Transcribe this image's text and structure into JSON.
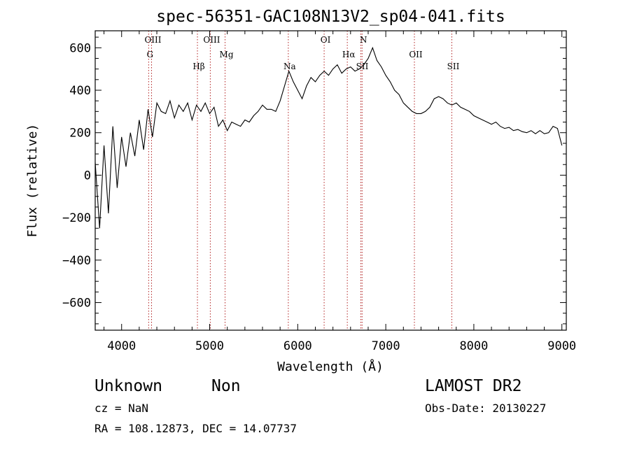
{
  "chart_data": {
    "type": "line",
    "title": "spec-56351-GAC108N13V2_sp04-041.fits",
    "xlabel": "Wavelength (Å)",
    "ylabel": "Flux (relative)",
    "xlim": [
      3700,
      9050
    ],
    "ylim": [
      -730,
      680
    ],
    "xticks": [
      4000,
      5000,
      6000,
      7000,
      8000,
      9000
    ],
    "yticks": [
      -600,
      -400,
      -200,
      0,
      200,
      400,
      600
    ],
    "grid": false,
    "series": [
      {
        "line_color": "#000000",
        "x": [
          3700,
          3750,
          3800,
          3850,
          3900,
          3950,
          4000,
          4050,
          4100,
          4150,
          4200,
          4250,
          4300,
          4350,
          4400,
          4450,
          4500,
          4550,
          4600,
          4650,
          4700,
          4750,
          4800,
          4850,
          4900,
          4950,
          5000,
          5050,
          5100,
          5150,
          5200,
          5250,
          5300,
          5350,
          5400,
          5450,
          5500,
          5550,
          5600,
          5650,
          5700,
          5750,
          5800,
          5850,
          5900,
          5950,
          6000,
          6050,
          6100,
          6150,
          6200,
          6250,
          6300,
          6350,
          6400,
          6450,
          6500,
          6550,
          6600,
          6650,
          6700,
          6750,
          6800,
          6850,
          6900,
          6950,
          7000,
          7050,
          7100,
          7150,
          7200,
          7250,
          7300,
          7350,
          7400,
          7450,
          7500,
          7550,
          7600,
          7650,
          7700,
          7750,
          7800,
          7850,
          7900,
          7950,
          8000,
          8050,
          8100,
          8150,
          8200,
          8250,
          8300,
          8350,
          8400,
          8450,
          8500,
          8550,
          8600,
          8650,
          8700,
          8750,
          8800,
          8850,
          8900,
          8950,
          9000
        ],
        "y": [
          60,
          -250,
          140,
          -180,
          230,
          -60,
          180,
          40,
          200,
          90,
          260,
          120,
          310,
          180,
          340,
          300,
          290,
          350,
          270,
          330,
          300,
          340,
          260,
          330,
          300,
          340,
          290,
          320,
          230,
          260,
          210,
          250,
          240,
          230,
          260,
          250,
          280,
          300,
          330,
          310,
          310,
          300,
          350,
          420,
          490,
          440,
          400,
          360,
          420,
          460,
          440,
          470,
          490,
          470,
          500,
          520,
          480,
          500,
          510,
          490,
          500,
          520,
          550,
          600,
          540,
          510,
          470,
          440,
          400,
          380,
          340,
          320,
          300,
          290,
          290,
          300,
          320,
          360,
          370,
          360,
          340,
          330,
          340,
          320,
          310,
          300,
          280,
          270,
          260,
          250,
          240,
          250,
          230,
          220,
          225,
          210,
          215,
          205,
          200,
          210,
          195,
          210,
          195,
          200,
          230,
          220,
          140
        ]
      }
    ],
    "lines": [
      {
        "label": "OIII",
        "x": 4340
      },
      {
        "label": "G",
        "x": 4307
      },
      {
        "label": "Hβ",
        "x": 4861
      },
      {
        "label": "OIII",
        "x": 5007
      },
      {
        "label": "Mg",
        "x": 5175
      },
      {
        "label": "Na",
        "x": 5893
      },
      {
        "label": "OI",
        "x": 6300
      },
      {
        "label": "Hα",
        "x": 6563
      },
      {
        "label": "SII",
        "x": 6717
      },
      {
        "label": "N",
        "x": 6731
      },
      {
        "label": "OII",
        "x": 7325
      },
      {
        "label": "SII",
        "x": 7750
      }
    ]
  },
  "footer": {
    "object_class": "Unknown",
    "subclass": "Non",
    "redshift": "cz = NaN",
    "coords": "RA = 108.12873, DEC =  14.07737",
    "survey": "LAMOST DR2",
    "obs_date": "Obs-Date: 20130227"
  }
}
